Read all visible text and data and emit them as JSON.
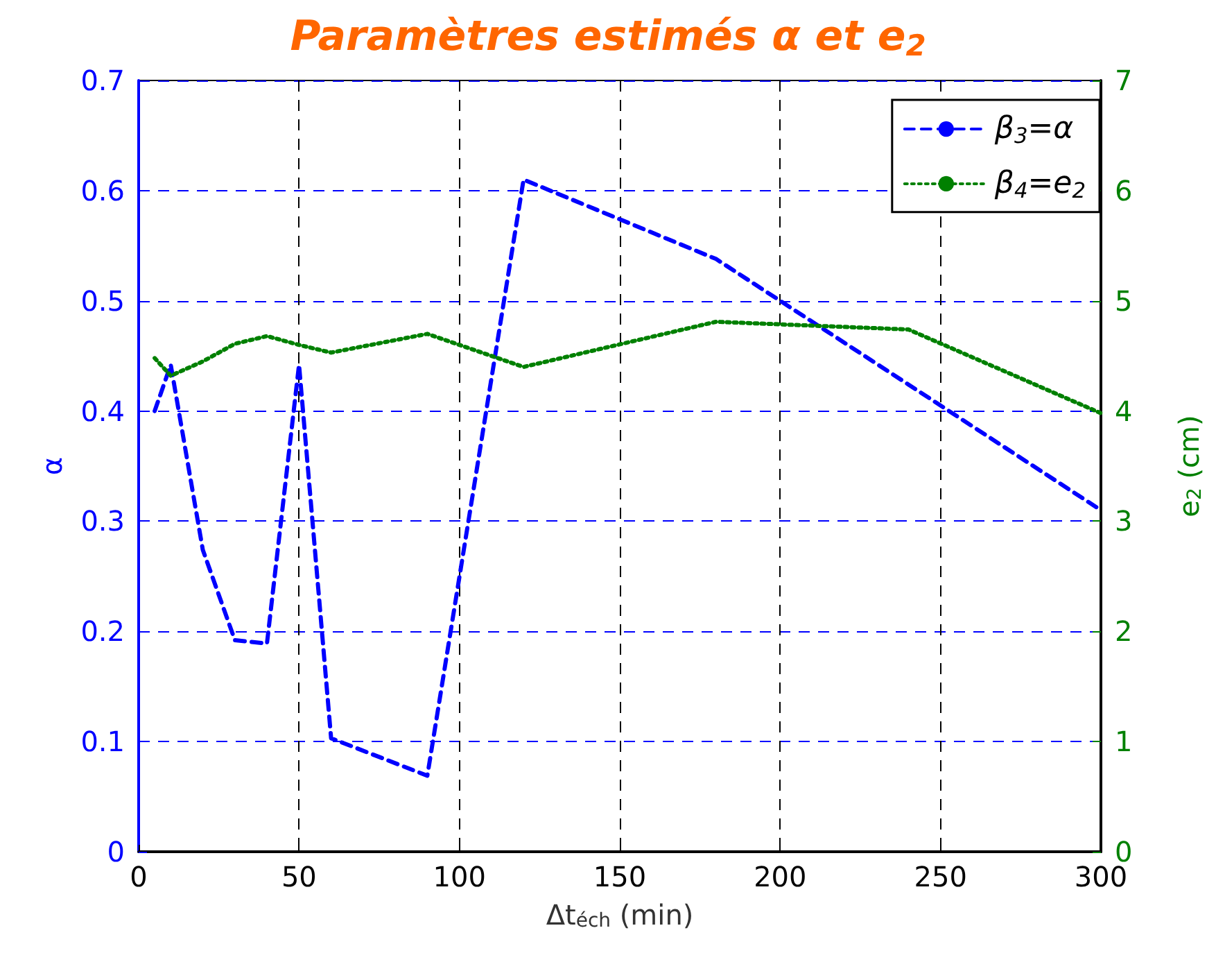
{
  "chart_data": {
    "type": "line",
    "title": "Paramètres estimés α et e$_{2}$",
    "xlabel": "Δt$_{éch}$ (min)",
    "ylabel": "α",
    "y2label": "e$_{2}$ (cm)",
    "x": [
      5,
      10,
      20,
      30,
      40,
      50,
      60,
      90,
      120,
      180,
      240,
      300
    ],
    "series": [
      {
        "name": "β$_{3}$=α",
        "color": "#0000ff",
        "line_style": "dashed",
        "values": [
          0.4,
          0.442,
          0.274,
          0.192,
          0.189,
          0.442,
          0.103,
          0.069,
          0.61,
          0.538,
          0.424,
          0.31
        ]
      },
      {
        "name": "β$_{4}$=e$_{2}$",
        "color": "#008000",
        "line_style": "dotted",
        "axis": "y2",
        "values": [
          4.48,
          4.32,
          4.45,
          4.61,
          4.68,
          4.6,
          4.53,
          4.7,
          4.4,
          4.81,
          4.74,
          3.98
        ]
      }
    ],
    "xlim": [
      0,
      300
    ],
    "xticks": [
      0,
      50,
      100,
      150,
      200,
      250,
      300
    ],
    "ylim": [
      0,
      0.7
    ],
    "yticks": [
      0,
      0.1,
      0.2,
      0.3,
      0.4,
      0.5,
      0.6,
      0.7
    ],
    "y2lim": [
      0,
      7
    ],
    "y2ticks": [
      0,
      1,
      2,
      3,
      4,
      5,
      6,
      7
    ],
    "grid": true,
    "legend": "top right"
  }
}
